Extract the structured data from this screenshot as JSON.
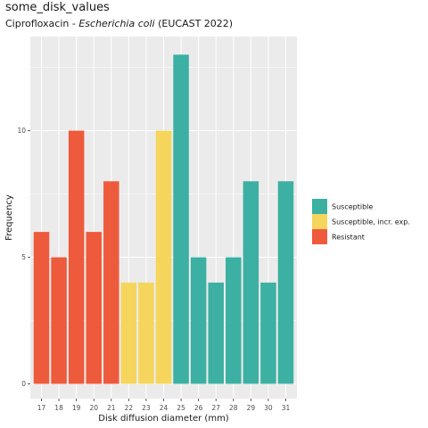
{
  "header": {
    "title": "some_disk_values",
    "subtitle_prefix": "Ciprofloxacin - ",
    "subtitle_organism": "Escherichia coli",
    "subtitle_suffix": " (EUCAST 2022)"
  },
  "chart_data": {
    "type": "bar",
    "title": "some_disk_values",
    "subtitle": "Ciprofloxacin - Escherichia coli (EUCAST 2022)",
    "xlabel": "Disk diffusion diameter (mm)",
    "ylabel": "Frequency",
    "categories": [
      "17",
      "18",
      "19",
      "20",
      "21",
      "22",
      "23",
      "24",
      "25",
      "26",
      "27",
      "28",
      "29",
      "30",
      "31"
    ],
    "values": [
      6,
      5,
      10,
      6,
      8,
      4,
      4,
      10,
      13,
      5,
      4,
      5,
      8,
      4,
      8
    ],
    "interpretation": [
      "Resistant",
      "Resistant",
      "Resistant",
      "Resistant",
      "Resistant",
      "Susceptible, incr. exp.",
      "Susceptible, incr. exp.",
      "Susceptible, incr. exp.",
      "Susceptible",
      "Susceptible",
      "Susceptible",
      "Susceptible",
      "Susceptible",
      "Susceptible",
      "Susceptible"
    ],
    "ylim": [
      0,
      13
    ],
    "yticks": [
      0,
      5,
      10
    ],
    "grid": true,
    "legend_position": "right",
    "legend": [
      {
        "name": "Susceptible",
        "color": "#3CB0A2"
      },
      {
        "name": "Susceptible, incr. exp.",
        "color": "#F5D55C"
      },
      {
        "name": "Resistant",
        "color": "#EE5A3C"
      }
    ],
    "colors": {
      "panel": "#EBEBEB",
      "grid": "#FFFFFF"
    }
  }
}
